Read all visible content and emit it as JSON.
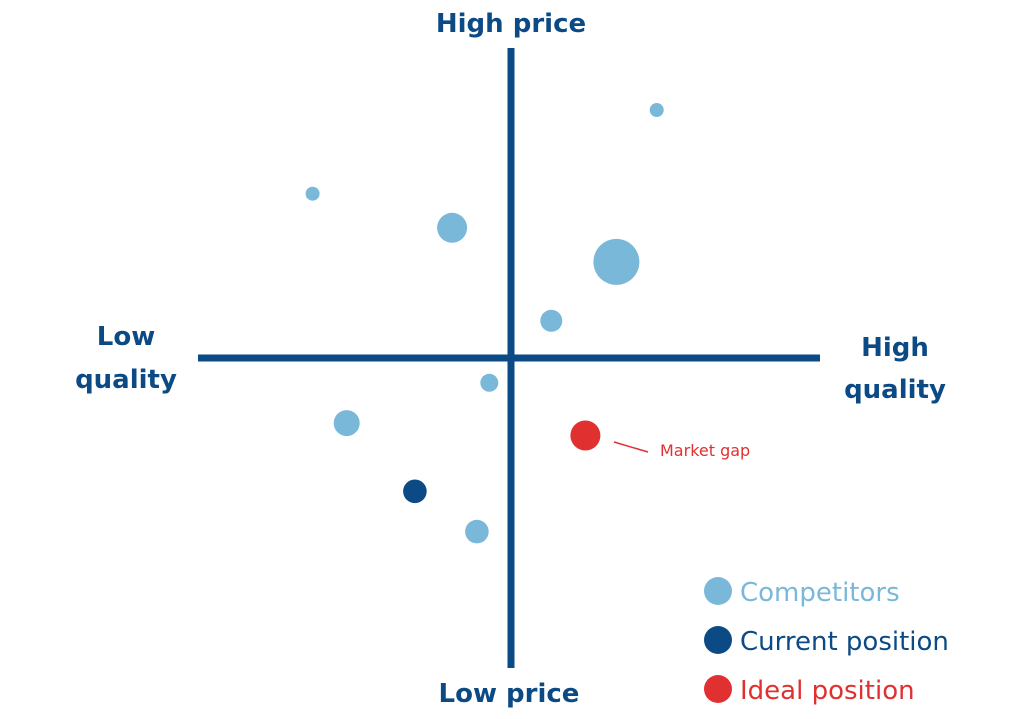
{
  "chart_data": {
    "type": "scatter",
    "axes": {
      "top_label": "High price",
      "bottom_label": "Low price",
      "left_label": [
        "Low",
        "quality"
      ],
      "right_label": [
        "High",
        "quality"
      ],
      "x_meaning": "quality",
      "y_meaning": "price",
      "xlim": [
        -1,
        1
      ],
      "ylim": [
        -1,
        1
      ],
      "grid": false
    },
    "series": [
      {
        "name": "Competitors",
        "color": "#7ab8d9",
        "points": [
          {
            "x": 0.47,
            "y": 0.8,
            "size": 1
          },
          {
            "x": -0.64,
            "y": 0.53,
            "size": 1
          },
          {
            "x": -0.19,
            "y": 0.42,
            "size": 3
          },
          {
            "x": 0.34,
            "y": 0.31,
            "size": 5
          },
          {
            "x": 0.13,
            "y": 0.12,
            "size": 2
          },
          {
            "x": -0.07,
            "y": -0.08,
            "size": 1.5
          },
          {
            "x": -0.53,
            "y": -0.21,
            "size": 2.5
          },
          {
            "x": -0.11,
            "y": -0.56,
            "size": 2.2
          }
        ]
      },
      {
        "name": "Current position",
        "color": "#0b4a85",
        "points": [
          {
            "x": -0.31,
            "y": -0.43,
            "size": 2.2
          }
        ]
      },
      {
        "name": "Ideal position",
        "color": "#e03030",
        "points": [
          {
            "x": 0.24,
            "y": -0.25,
            "size": 3
          }
        ]
      }
    ],
    "annotations": [
      {
        "text": "Market gap",
        "target_series": "Ideal position"
      }
    ],
    "legend": {
      "placement": "bottom-right",
      "entries": [
        {
          "label": "Competitors",
          "color": "#7ab8d9"
        },
        {
          "label": "Current position",
          "color": "#0b4a85"
        },
        {
          "label": "Ideal position",
          "color": "#e03030"
        }
      ]
    },
    "colors": {
      "axis": "#0b4a85",
      "annotation": "#e03030"
    }
  }
}
